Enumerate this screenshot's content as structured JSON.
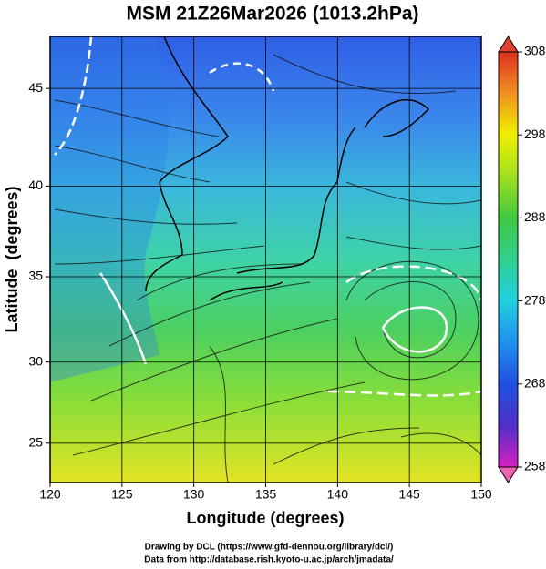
{
  "title": "MSM 21Z26Mar2026 (1013.2hPa)",
  "map": {
    "xlabel": "Longitude (degrees)",
    "ylabel": "Latitude  (degrees)",
    "xlim": [
      120,
      150
    ],
    "ylim": [
      22.5,
      47.5
    ],
    "xticks": [
      120,
      125,
      130,
      135,
      140,
      145,
      150
    ],
    "yticks": [
      25,
      30,
      35,
      40,
      45
    ],
    "grid": true
  },
  "colorbar": {
    "lim": [
      258,
      308
    ],
    "ticks": [
      258,
      268,
      278,
      288,
      298,
      308
    ]
  },
  "credits": [
    "Drawing by DCL (https://www.gfd-dennou.org/library/dcl/)",
    "Data from http://database.rish.kyoto-u.ac.jp/arch/jmadata/"
  ]
}
